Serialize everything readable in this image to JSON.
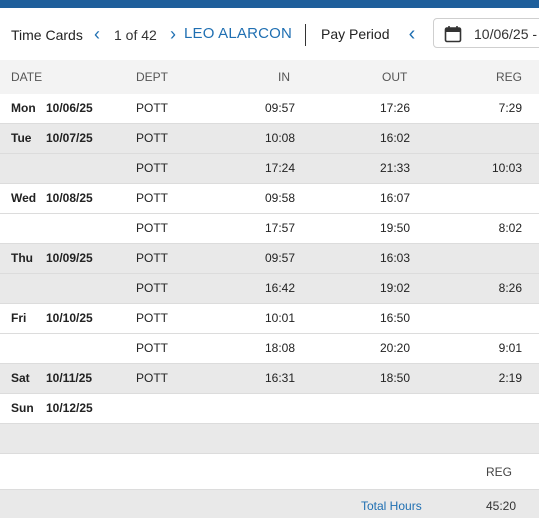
{
  "header": {
    "title": "Time Cards",
    "count": "1 of 42",
    "employee": "LEO ALARCON",
    "pay_period_label": "Pay Period",
    "date_value": "10/06/25 -"
  },
  "columns": {
    "date": "DATE",
    "dept": "DEPT",
    "in": "IN",
    "out": "OUT",
    "reg": "REG"
  },
  "rows": [
    {
      "day": "Mon",
      "date": "10/06/25",
      "dept": "POTT",
      "in": "09:57",
      "out": "17:26",
      "reg": "7:29"
    },
    {
      "day": "Tue",
      "date": "10/07/25",
      "dept": "POTT",
      "in": "10:08",
      "out": "16:02",
      "reg": ""
    },
    {
      "day": "",
      "date": "",
      "dept": "POTT",
      "in": "17:24",
      "out": "21:33",
      "reg": "10:03"
    },
    {
      "day": "Wed",
      "date": "10/08/25",
      "dept": "POTT",
      "in": "09:58",
      "out": "16:07",
      "reg": ""
    },
    {
      "day": "",
      "date": "",
      "dept": "POTT",
      "in": "17:57",
      "out": "19:50",
      "reg": "8:02"
    },
    {
      "day": "Thu",
      "date": "10/09/25",
      "dept": "POTT",
      "in": "09:57",
      "out": "16:03",
      "reg": ""
    },
    {
      "day": "",
      "date": "",
      "dept": "POTT",
      "in": "16:42",
      "out": "19:02",
      "reg": "8:26"
    },
    {
      "day": "Fri",
      "date": "10/10/25",
      "dept": "POTT",
      "in": "10:01",
      "out": "16:50",
      "reg": ""
    },
    {
      "day": "",
      "date": "",
      "dept": "POTT",
      "in": "18:08",
      "out": "20:20",
      "reg": "9:01"
    },
    {
      "day": "Sat",
      "date": "10/11/25",
      "dept": "POTT",
      "in": "16:31",
      "out": "18:50",
      "reg": "2:19"
    },
    {
      "day": "Sun",
      "date": "10/12/25",
      "dept": "",
      "in": "",
      "out": "",
      "reg": ""
    }
  ],
  "footer": {
    "reg_label": "REG",
    "total_label": "Total Hours",
    "total_value": "45:20"
  },
  "colors": {
    "accent": "#1f6fb2",
    "topbar": "#1f5f9b",
    "shade": "#e9e9e9"
  },
  "icons": {
    "prev": "chevron-left-icon",
    "next": "chevron-right-icon",
    "calendar": "calendar-icon"
  }
}
